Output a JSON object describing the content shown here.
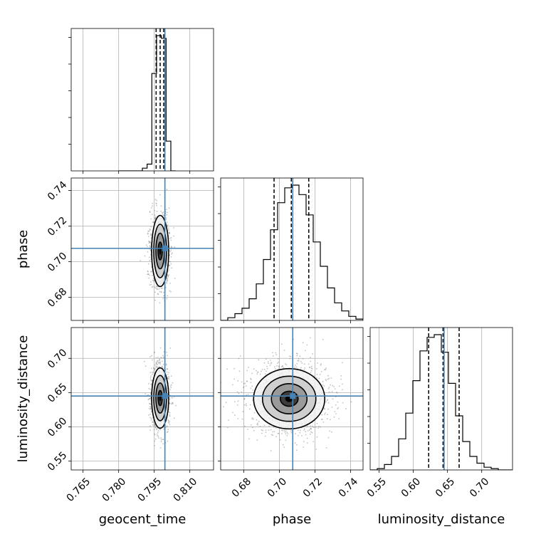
{
  "chart_data": {
    "type": "corner",
    "parameters": [
      "geocent_time",
      "phase",
      "luminosity_distance"
    ],
    "axis_labels": {
      "geocent_time": "geocent_time",
      "phase": "phase",
      "luminosity_distance": "luminosity_distance"
    },
    "ranges": {
      "geocent_time": [
        0.76,
        0.82
      ],
      "phase": [
        0.667,
        0.747
      ],
      "luminosity_distance": [
        0.537,
        0.745
      ]
    },
    "ticks": {
      "geocent_time": {
        "values": [
          0.765,
          0.78,
          0.795,
          0.81
        ],
        "labels": [
          "0.765",
          "0.780",
          "0.795",
          "0.810"
        ]
      },
      "phase": {
        "values": [
          0.68,
          0.7,
          0.72,
          0.74
        ],
        "labels": [
          "0.68",
          "0.70",
          "0.72",
          "0.74"
        ]
      },
      "luminosity_distance": {
        "values": [
          0.55,
          0.6,
          0.65,
          0.7
        ],
        "labels": [
          "0.55",
          "0.60",
          "0.65",
          "0.70"
        ]
      }
    },
    "truths": {
      "geocent_time": 0.7995,
      "phase": 0.7075,
      "luminosity_distance": 0.645
    },
    "quantiles": {
      "geocent_time": [
        0.7958,
        0.7975,
        0.799
      ],
      "phase": [
        0.697,
        0.7067,
        0.7165
      ],
      "luminosity_distance": [
        0.6225,
        0.6435,
        0.667
      ]
    },
    "histograms": {
      "geocent_time": {
        "edges": [
          0.78,
          0.782,
          0.784,
          0.786,
          0.788,
          0.79,
          0.792,
          0.794,
          0.796,
          0.798,
          0.8,
          0.802,
          0.804
        ],
        "counts": [
          0,
          0,
          0,
          0,
          0,
          0.02,
          0.05,
          0.72,
          1.0,
          0.98,
          0.22,
          0.0
        ]
      },
      "phase": {
        "edges": [
          0.667,
          0.671,
          0.675,
          0.679,
          0.683,
          0.687,
          0.691,
          0.695,
          0.699,
          0.703,
          0.707,
          0.711,
          0.715,
          0.719,
          0.723,
          0.727,
          0.731,
          0.735,
          0.739,
          0.743,
          0.747
        ],
        "counts": [
          0.0,
          0.02,
          0.05,
          0.09,
          0.16,
          0.27,
          0.45,
          0.67,
          0.87,
          0.98,
          1.0,
          0.93,
          0.78,
          0.58,
          0.4,
          0.24,
          0.13,
          0.07,
          0.03,
          0.01
        ]
      },
      "luminosity_distance": {
        "edges": [
          0.537,
          0.5474,
          0.5578,
          0.5682,
          0.5786,
          0.589,
          0.5994,
          0.6098,
          0.6202,
          0.6306,
          0.641,
          0.6514,
          0.6618,
          0.6722,
          0.6826,
          0.693,
          0.7034,
          0.7138,
          0.7242,
          0.7346,
          0.745
        ],
        "counts": [
          0.0,
          0.01,
          0.04,
          0.1,
          0.23,
          0.42,
          0.66,
          0.88,
          0.98,
          1.0,
          0.87,
          0.64,
          0.4,
          0.21,
          0.1,
          0.05,
          0.02,
          0.01,
          0.0,
          0.0
        ]
      }
    },
    "joint_2d": [
      {
        "x": "geocent_time",
        "y": "phase",
        "x_center": 0.7975,
        "y_center": 0.706,
        "x_sigma": 0.0018,
        "y_sigma": 0.01,
        "n_points": 1000
      },
      {
        "x": "geocent_time",
        "y": "luminosity_distance",
        "x_center": 0.7975,
        "y_center": 0.642,
        "x_sigma": 0.0018,
        "y_sigma": 0.022,
        "n_points": 1000
      },
      {
        "x": "phase",
        "y": "luminosity_distance",
        "x_center": 0.7055,
        "y_center": 0.641,
        "x_sigma": 0.01,
        "y_sigma": 0.022,
        "n_points": 1500
      }
    ],
    "grid": true,
    "colors": {
      "truth": "#4682b4",
      "contour": "#000000",
      "density": "#404040",
      "grid": "#b0b0b0"
    }
  }
}
